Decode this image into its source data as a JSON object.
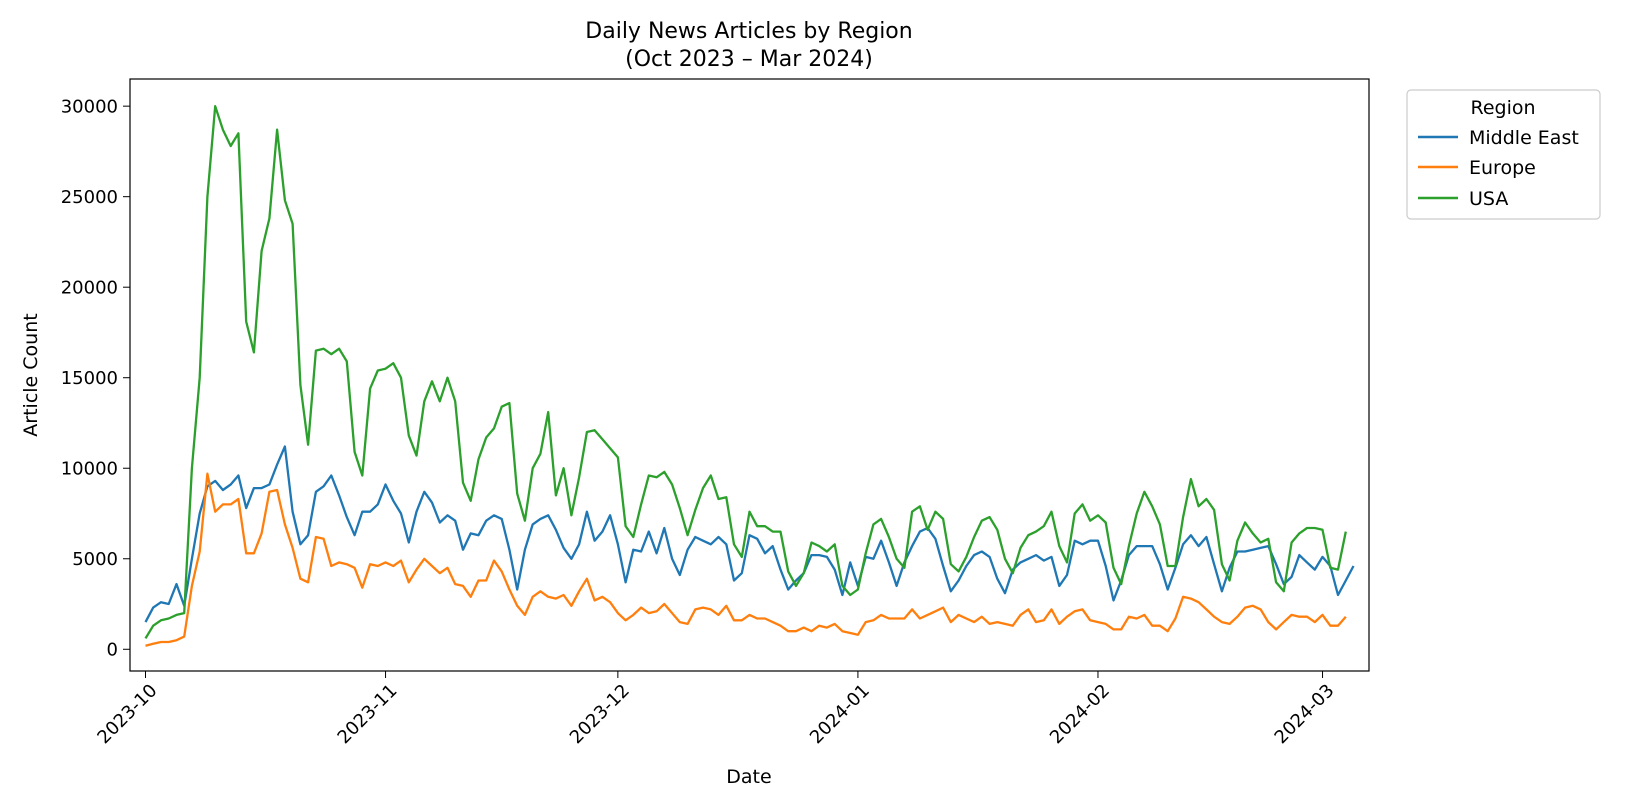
{
  "chart_data": {
    "type": "line",
    "title": "Daily News Articles by Region",
    "subtitle": "(Oct 2023 – Mar 2024)",
    "xlabel": "Date",
    "ylabel": "Article Count",
    "x_start": "2023-10-01",
    "x_end": "2024-03-04",
    "xlim": [
      "2023-09-29",
      "2024-03-07"
    ],
    "ylim": [
      -1200,
      31500
    ],
    "xticks": [
      {
        "date": "2023-10-01",
        "label": "2023-10"
      },
      {
        "date": "2023-11-01",
        "label": "2023-11"
      },
      {
        "date": "2023-12-01",
        "label": "2023-12"
      },
      {
        "date": "2024-01-01",
        "label": "2024-01"
      },
      {
        "date": "2024-02-01",
        "label": "2024-02"
      },
      {
        "date": "2024-03-01",
        "label": "2024-03"
      }
    ],
    "yticks": [
      0,
      5000,
      10000,
      15000,
      20000,
      25000,
      30000
    ],
    "grid": false,
    "legend": {
      "title": "Region",
      "position": "outside-top-right"
    },
    "series": [
      {
        "name": "Middle East",
        "color": "#1f77b4",
        "values": [
          1500,
          2300,
          2600,
          2500,
          3600,
          2400,
          5000,
          7500,
          9000,
          9300,
          8800,
          9100,
          9600,
          7800,
          8900,
          8900,
          9100,
          10200,
          11200,
          7600,
          5800,
          6300,
          8700,
          9000,
          9600,
          8500,
          7300,
          6300,
          7600,
          7600,
          8000,
          9100,
          8200,
          7500,
          5900,
          7600,
          8700,
          8100,
          7000,
          7400,
          7100,
          5500,
          6400,
          6300,
          7100,
          7400,
          7200,
          5500,
          3300,
          5500,
          6900,
          7200,
          7400,
          6600,
          5600,
          5000,
          5800,
          7600,
          6000,
          6500,
          7400,
          5800,
          3700,
          5500,
          5400,
          6500,
          5300,
          6700,
          5000,
          4100,
          5500,
          6200,
          6000,
          5800,
          6200,
          5800,
          3800,
          4200,
          6300,
          6100,
          5300,
          5700,
          4400,
          3300,
          3800,
          4200,
          5200,
          5200,
          5100,
          4400,
          3000,
          4800,
          3500,
          5100,
          5000,
          6000,
          4800,
          3500,
          4800,
          5700,
          6500,
          6700,
          6100,
          4600,
          3200,
          3800,
          4600,
          5200,
          5400,
          5100,
          3900,
          3100,
          4400,
          4800,
          5000,
          5200,
          4900,
          5100,
          3500,
          4100,
          6000,
          5800,
          6000,
          6000,
          4600,
          2700,
          3800,
          5200,
          5700,
          5700,
          5700,
          4700,
          3300,
          4500,
          5800,
          6300,
          5700,
          6200,
          4700,
          3200,
          4500,
          5400,
          5400,
          5500,
          5600,
          5700,
          4700,
          3600,
          4000,
          5200,
          4800,
          4400,
          5100,
          4600,
          3000,
          3800,
          4600
        ]
      },
      {
        "name": "Europe",
        "color": "#ff7f0e",
        "values": [
          200,
          300,
          400,
          400,
          500,
          700,
          3500,
          5400,
          9700,
          7600,
          8000,
          8000,
          8300,
          5300,
          5300,
          6400,
          8700,
          8800,
          6900,
          5600,
          3900,
          3700,
          6200,
          6100,
          4600,
          4800,
          4700,
          4500,
          3400,
          4700,
          4600,
          4800,
          4600,
          4900,
          3700,
          4400,
          5000,
          4600,
          4200,
          4500,
          3600,
          3500,
          2900,
          3800,
          3800,
          4900,
          4300,
          3300,
          2400,
          1900,
          2900,
          3200,
          2900,
          2800,
          3000,
          2400,
          3200,
          3900,
          2700,
          2900,
          2600,
          2000,
          1600,
          1900,
          2300,
          2000,
          2100,
          2500,
          2000,
          1500,
          1400,
          2200,
          2300,
          2200,
          1900,
          2400,
          1600,
          1600,
          1900,
          1700,
          1700,
          1500,
          1300,
          1000,
          1000,
          1200,
          1000,
          1300,
          1200,
          1400,
          1000,
          900,
          800,
          1500,
          1600,
          1900,
          1700,
          1700,
          1700,
          2200,
          1700,
          1900,
          2100,
          2300,
          1500,
          1900,
          1700,
          1500,
          1800,
          1400,
          1500,
          1400,
          1300,
          1900,
          2200,
          1500,
          1600,
          2200,
          1400,
          1800,
          2100,
          2200,
          1600,
          1500,
          1400,
          1100,
          1100,
          1800,
          1700,
          1900,
          1300,
          1300,
          1000,
          1700,
          2900,
          2800,
          2600,
          2200,
          1800,
          1500,
          1400,
          1800,
          2300,
          2400,
          2200,
          1500,
          1100,
          1500,
          1900,
          1800,
          1800,
          1500,
          1900,
          1300,
          1300,
          1800
        ]
      },
      {
        "name": "USA",
        "color": "#2ca02c",
        "values": [
          600,
          1300,
          1600,
          1700,
          1900,
          2000,
          10000,
          15000,
          25000,
          30000,
          28700,
          27800,
          28500,
          18100,
          16400,
          22000,
          23800,
          28700,
          24800,
          23500,
          14600,
          11300,
          16500,
          16600,
          16300,
          16600,
          15900,
          10900,
          9600,
          14400,
          15400,
          15500,
          15800,
          15000,
          11800,
          10700,
          13700,
          14800,
          13700,
          15000,
          13700,
          9200,
          8200,
          10500,
          11700,
          12200,
          13400,
          13600,
          8600,
          7100,
          10000,
          10800,
          13100,
          8500,
          10000,
          7400,
          9500,
          12000,
          12100,
          11600,
          11100,
          10600,
          6800,
          6200,
          8000,
          9600,
          9500,
          9800,
          9100,
          7800,
          6300,
          7700,
          8900,
          9600,
          8300,
          8400,
          5800,
          5100,
          7600,
          6800,
          6800,
          6500,
          6500,
          4300,
          3500,
          4200,
          5900,
          5700,
          5400,
          5800,
          3500,
          3000,
          3300,
          5300,
          6900,
          7200,
          6200,
          5000,
          4500,
          7600,
          7900,
          6600,
          7600,
          7200,
          4700,
          4300,
          5100,
          6200,
          7100,
          7300,
          6600,
          5000,
          4200,
          5600,
          6300,
          6500,
          6800,
          7600,
          5700,
          4800,
          7500,
          8000,
          7100,
          7400,
          7000,
          4500,
          3600,
          5700,
          7500,
          8700,
          7900,
          6900,
          4600,
          4600,
          7300,
          9400,
          7900,
          8300,
          7700,
          4700,
          3800,
          6000,
          7000,
          6400,
          5900,
          6100,
          3700,
          3200,
          5900,
          6400,
          6700,
          6700,
          6600,
          4500,
          4400,
          6500
        ]
      }
    ]
  }
}
